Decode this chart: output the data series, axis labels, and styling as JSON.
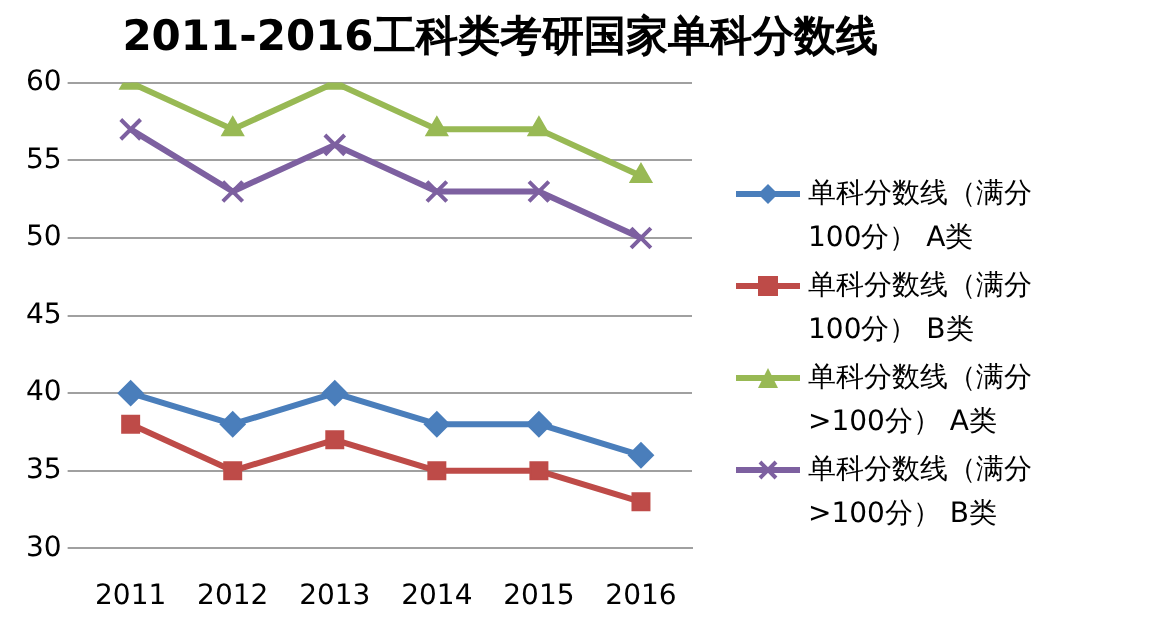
{
  "chart_data": {
    "type": "line",
    "title": "2011-2016工科类考研国家单科分数线",
    "categories": [
      "2011",
      "2012",
      "2013",
      "2014",
      "2015",
      "2016"
    ],
    "series": [
      {
        "name": "单科分数线（满分100分） A类",
        "color": "#4a7ebb",
        "marker": "diamond",
        "values": [
          40,
          38,
          40,
          38,
          38,
          36
        ]
      },
      {
        "name": "单科分数线（满分100分） B类",
        "color": "#be4b48",
        "marker": "square",
        "values": [
          38,
          35,
          37,
          35,
          35,
          33
        ]
      },
      {
        "name": "单科分数线（满分>100分） A类",
        "color": "#98b954",
        "marker": "triangle",
        "values": [
          60,
          57,
          60,
          57,
          57,
          54
        ]
      },
      {
        "name": "单科分数线（满分>100分） B类",
        "color": "#7d60a0",
        "marker": "cross",
        "values": [
          57,
          53,
          56,
          53,
          53,
          50
        ]
      }
    ],
    "ylim": [
      30,
      60
    ],
    "yticks": [
      30,
      35,
      40,
      45,
      50,
      55,
      60
    ],
    "grid": "y",
    "legend": "right"
  }
}
